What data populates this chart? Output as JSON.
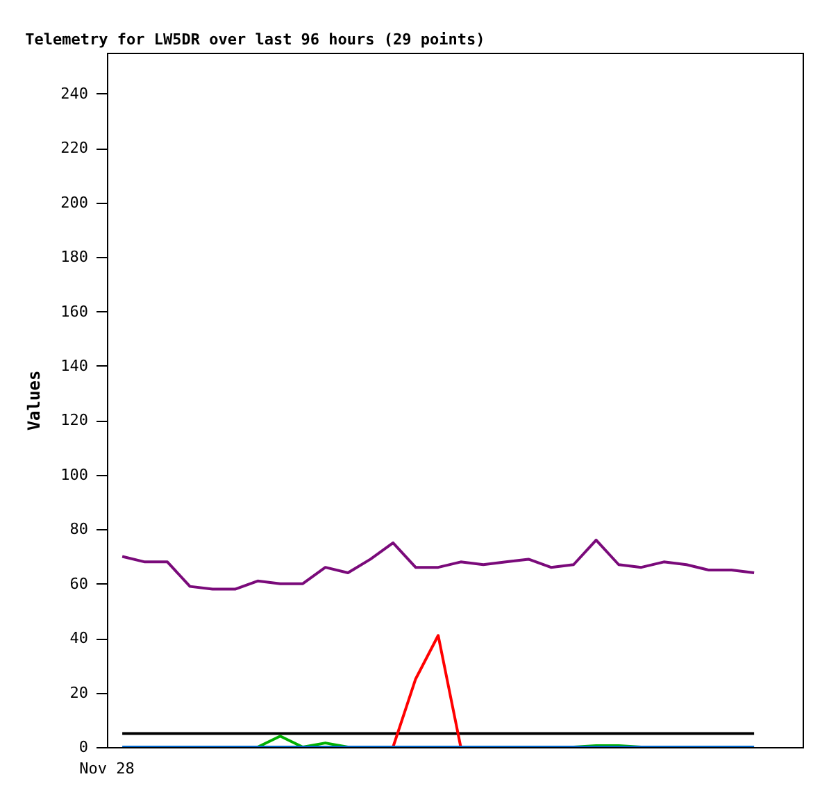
{
  "chart_data": {
    "type": "line",
    "title": "Telemetry for LW5DR over last 96 hours (29 points)",
    "ylabel": "Values",
    "categories": [
      null,
      null,
      null,
      null,
      null,
      null,
      null,
      null,
      null,
      null,
      null,
      null,
      null,
      null,
      null,
      null,
      null,
      null,
      null,
      null,
      null,
      null,
      null,
      null,
      null,
      null,
      null,
      null,
      null
    ],
    "annotations": [
      "Nov 28"
    ],
    "ylim": [
      0,
      255
    ],
    "yticks": [
      0,
      20,
      40,
      60,
      80,
      100,
      120,
      140,
      160,
      180,
      200,
      220,
      240
    ],
    "line_style": "solid",
    "series": [
      {
        "color": "#000000",
        "values": [
          5,
          5,
          5,
          5,
          5,
          5,
          5,
          5,
          5,
          5,
          5,
          5,
          5,
          5,
          5,
          5,
          5,
          5,
          5,
          5,
          5,
          5,
          5,
          5,
          5,
          5,
          5,
          5,
          5
        ]
      },
      {
        "color": "#7a0a7a",
        "values": [
          70,
          68,
          68,
          59,
          58,
          58,
          61,
          60,
          60,
          66,
          64,
          69,
          75,
          66,
          66,
          68,
          67,
          68,
          69,
          66,
          67,
          76,
          67,
          66,
          68,
          67,
          65,
          65,
          64
        ]
      },
      {
        "color": "#ff0000",
        "values": [
          null,
          null,
          null,
          null,
          null,
          null,
          null,
          null,
          null,
          null,
          null,
          null,
          0,
          25,
          41,
          0,
          null,
          null,
          null,
          null,
          null,
          null,
          null,
          null,
          null,
          null,
          null,
          null,
          null
        ]
      },
      {
        "color": "#00b000",
        "values": [
          null,
          null,
          null,
          null,
          null,
          null,
          0,
          4,
          0,
          1.5,
          0,
          null,
          null,
          null,
          null,
          null,
          null,
          null,
          null,
          null,
          0,
          0.5,
          0.5,
          0,
          null,
          null,
          null,
          null,
          null
        ]
      },
      {
        "color": "#0066cc",
        "values": [
          0,
          0,
          0,
          0,
          0,
          0,
          0,
          0,
          0,
          0,
          0,
          0,
          0,
          0,
          0,
          0,
          0,
          0,
          0,
          0,
          0,
          0,
          0,
          0,
          0,
          0,
          0,
          0,
          0
        ]
      }
    ]
  }
}
